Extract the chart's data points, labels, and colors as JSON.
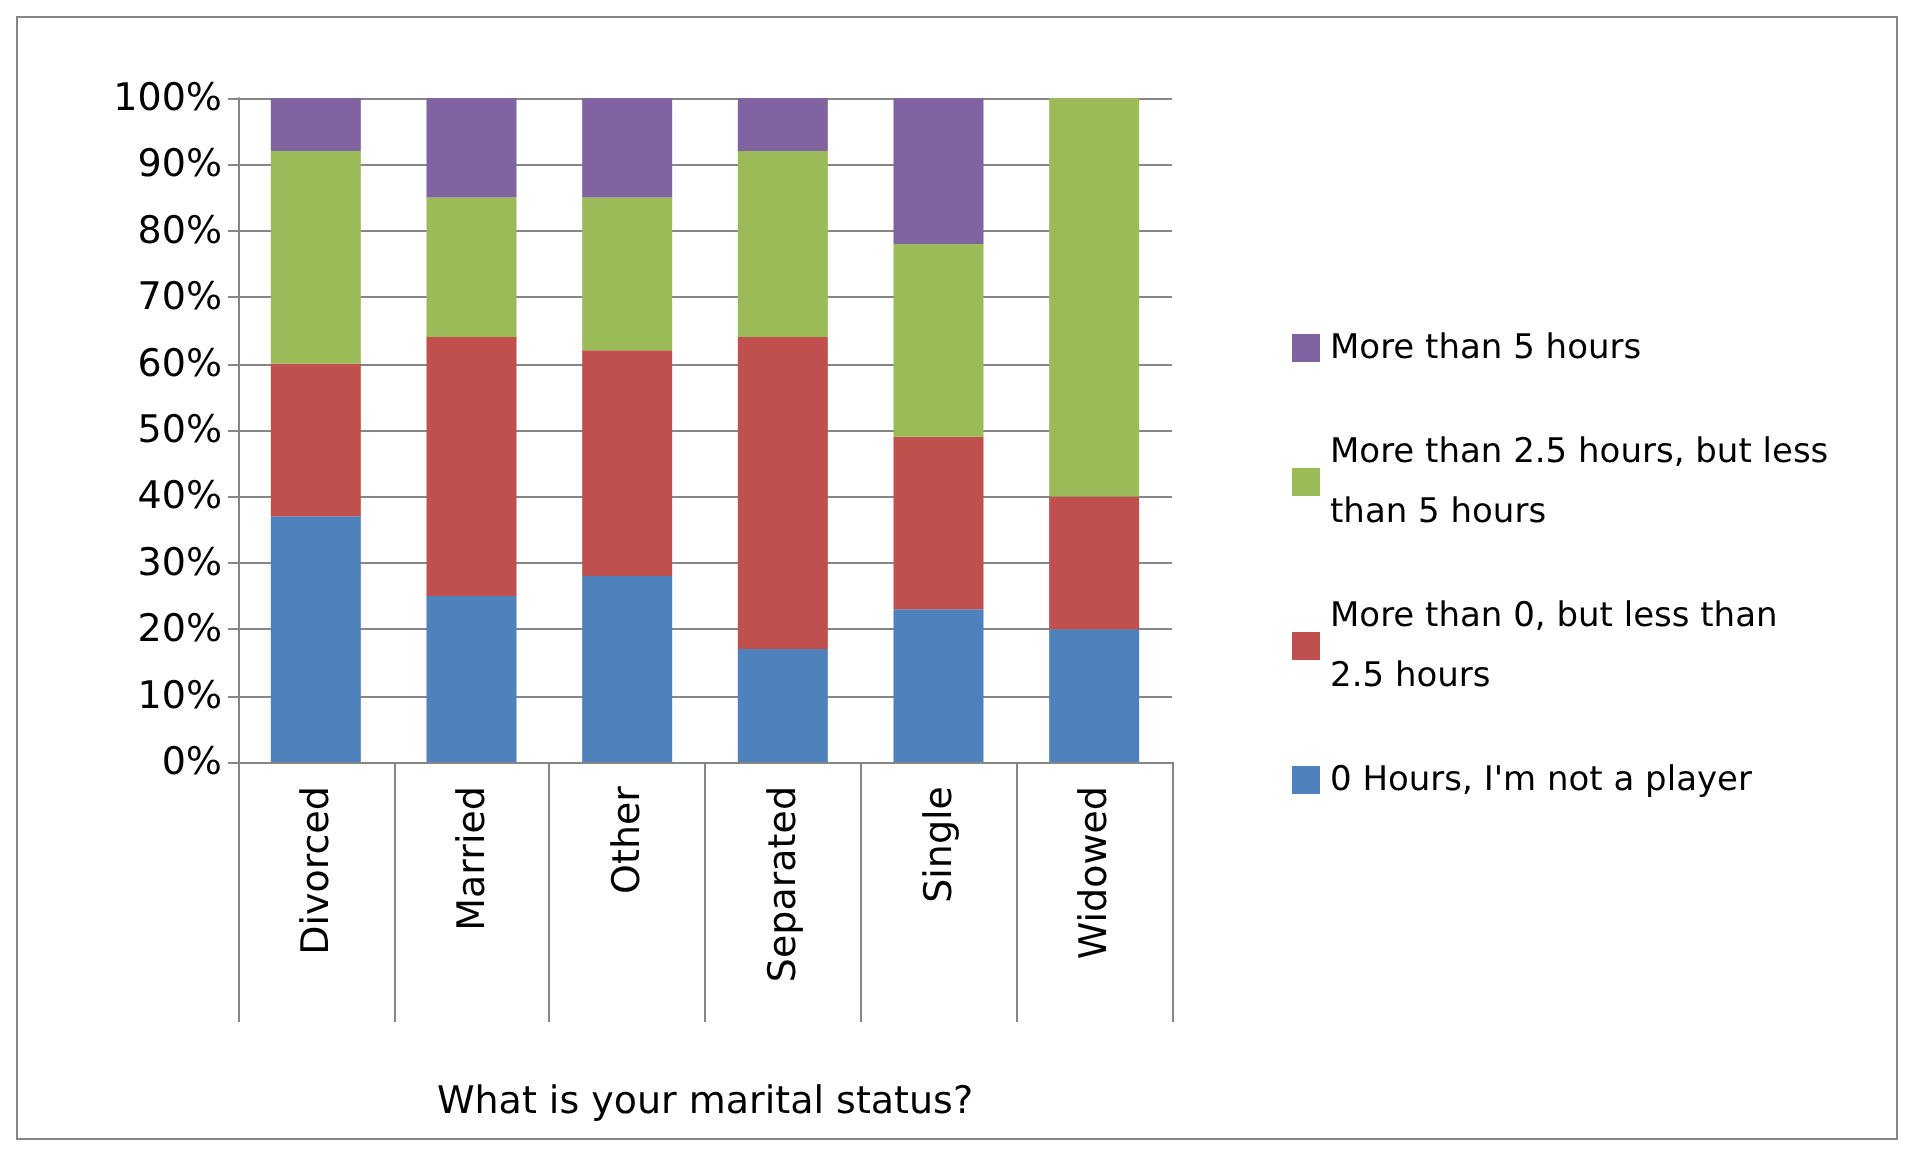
{
  "chart_data": {
    "type": "bar",
    "stacked": true,
    "xlabel": "What is your marital status?",
    "categories": [
      "Divorced",
      "Married",
      "Other",
      "Separated",
      "Single",
      "Widowed"
    ],
    "series": [
      {
        "name": "0 Hours, I'm not a player",
        "color": "#4f81bd",
        "values": [
          37,
          25,
          28,
          17,
          23,
          20
        ]
      },
      {
        "name": "More than 0, but less than 2.5 hours",
        "color": "#c0504d",
        "values": [
          23,
          39,
          34,
          47,
          26,
          20
        ]
      },
      {
        "name": "More than 2.5 hours, but less than 5 hours",
        "color": "#9bbb59",
        "values": [
          32,
          21,
          23,
          28,
          29,
          60
        ]
      },
      {
        "name": "More than 5 hours",
        "color": "#8064a2",
        "values": [
          8,
          15,
          15,
          8,
          22,
          0
        ]
      }
    ],
    "ylim": [
      0,
      100
    ],
    "yticks": [
      {
        "value": 0,
        "label": "0%"
      },
      {
        "value": 10,
        "label": "10%"
      },
      {
        "value": 20,
        "label": "20%"
      },
      {
        "value": 30,
        "label": "30%"
      },
      {
        "value": 40,
        "label": "40%"
      },
      {
        "value": 50,
        "label": "50%"
      },
      {
        "value": 60,
        "label": "60%"
      },
      {
        "value": 70,
        "label": "70%"
      },
      {
        "value": 80,
        "label": "80%"
      },
      {
        "value": 90,
        "label": "90%"
      },
      {
        "value": 100,
        "label": "100%"
      }
    ],
    "grid": "y",
    "legend": "right"
  }
}
